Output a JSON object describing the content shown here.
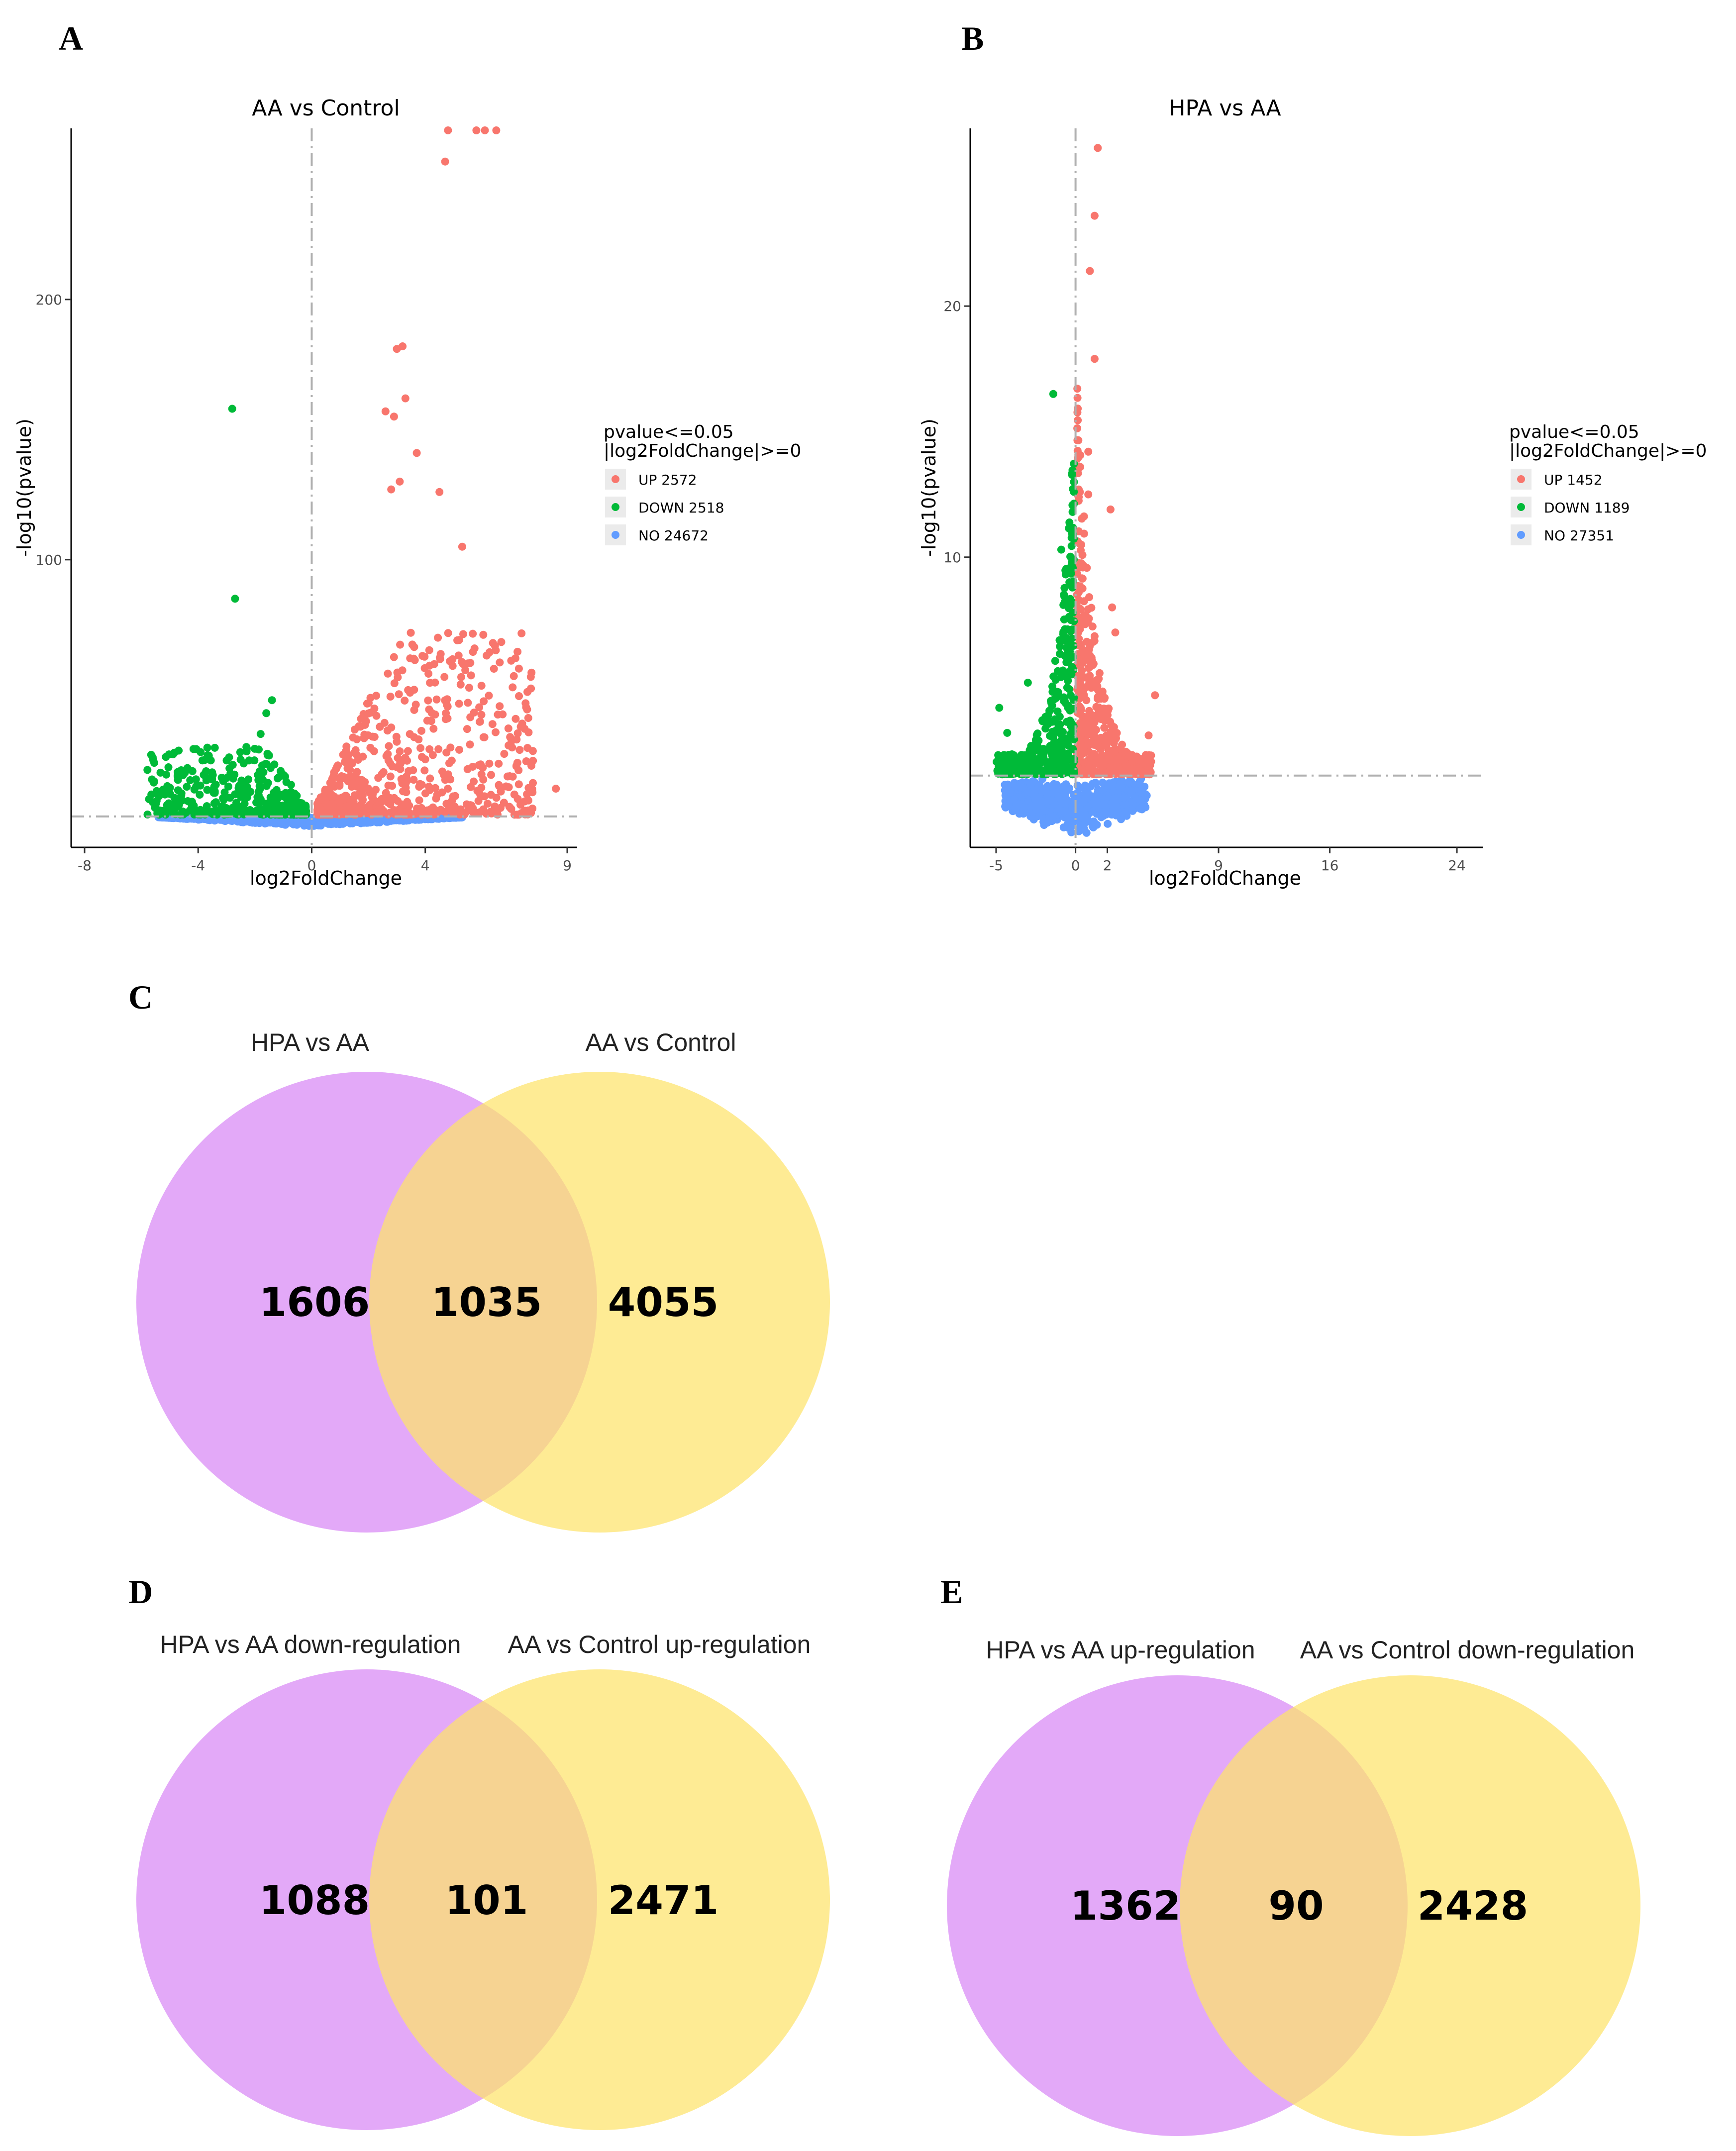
{
  "panels": {
    "A": "A",
    "B": "B",
    "C": "C",
    "D": "D",
    "E": "E"
  },
  "chart_data": [
    {
      "type": "scatter",
      "id": "A",
      "title": "AA  vs  Control",
      "xlabel": "log2FoldChange",
      "ylabel": "-log10(pvalue)",
      "xlim": [
        -8,
        9
      ],
      "ylim": [
        -10,
        265
      ],
      "x_ticks": [
        -8,
        -4,
        0,
        4,
        9
      ],
      "x_tick_labels": [
        "-8",
        "-4",
        "0",
        "4",
        "9"
      ],
      "y_ticks": [
        100,
        200
      ],
      "y_tick_labels": [
        "100",
        "200"
      ],
      "threshold_x": 0,
      "threshold_y": 1.3,
      "legend": {
        "title_line1": "pvalue<=0.05",
        "title_line2": "|log2FoldChange|>=0",
        "placement": "right",
        "entries": [
          {
            "label": "UP 2572",
            "color": "#f8766d"
          },
          {
            "label": "DOWN 2518",
            "color": "#00ba38"
          },
          {
            "label": "NO 24672",
            "color": "#619cff"
          }
        ]
      },
      "highlight_points": {
        "up": [
          [
            4.8,
            265
          ],
          [
            5.8,
            265
          ],
          [
            6.1,
            265
          ],
          [
            6.5,
            265
          ],
          [
            4.7,
            253
          ],
          [
            3.2,
            182
          ],
          [
            3.0,
            181
          ],
          [
            3.3,
            162
          ],
          [
            2.6,
            157
          ],
          [
            2.9,
            155
          ],
          [
            3.7,
            141
          ],
          [
            4.5,
            126
          ],
          [
            5.3,
            105
          ],
          [
            3.1,
            130
          ],
          [
            2.8,
            127
          ],
          [
            7.5,
            35
          ],
          [
            8.6,
            12
          ],
          [
            5.5,
            45
          ],
          [
            6.6,
            13
          ]
        ],
        "down": [
          [
            -2.8,
            158
          ],
          [
            -2.7,
            85
          ],
          [
            -1.4,
            46
          ],
          [
            -1.6,
            41
          ],
          [
            -1.8,
            33
          ],
          [
            -2.3,
            28
          ]
        ]
      },
      "cloud": {
        "up": {
          "x": [
            0.2,
            7.8
          ],
          "count": 700
        },
        "down": {
          "x": [
            -5.8,
            -0.2
          ],
          "count": 420
        },
        "no": {
          "x": [
            -5.4,
            5.3
          ],
          "count": 700
        }
      }
    },
    {
      "type": "scatter",
      "id": "B",
      "title": "HPA  vs  AA",
      "xlabel": "log2FoldChange",
      "ylabel": "-log10(pvalue)",
      "xlim": [
        -6,
        25
      ],
      "ylim": [
        -1.5,
        27
      ],
      "x_ticks": [
        -5,
        0,
        2,
        9,
        16,
        24
      ],
      "x_tick_labels": [
        "-5",
        "0",
        "2",
        "9",
        "16",
        "24"
      ],
      "y_ticks": [
        10,
        20
      ],
      "y_tick_labels": [
        "10",
        "20"
      ],
      "threshold_x": 0,
      "threshold_y": 1.3,
      "legend": {
        "title_line1": "pvalue<=0.05",
        "title_line2": "|log2FoldChange|>=0",
        "placement": "right",
        "entries": [
          {
            "label": "UP 1452",
            "color": "#f8766d"
          },
          {
            "label": "DOWN 1189",
            "color": "#00ba38"
          },
          {
            "label": "NO 27351",
            "color": "#619cff"
          }
        ]
      },
      "highlight_points": {
        "up": [
          [
            1.4,
            26.3
          ],
          [
            1.2,
            23.6
          ],
          [
            0.9,
            21.4
          ],
          [
            1.2,
            17.9
          ],
          [
            0.8,
            14.2
          ],
          [
            0.8,
            12.5
          ],
          [
            2.2,
            11.9
          ],
          [
            2.3,
            8.0
          ],
          [
            2.5,
            7.0
          ],
          [
            5.0,
            4.5
          ],
          [
            4.6,
            2.9
          ]
        ],
        "down": [
          [
            -1.4,
            16.5
          ],
          [
            -0.9,
            10.3
          ],
          [
            -4.8,
            4.0
          ],
          [
            -4.3,
            3.0
          ],
          [
            -3.0,
            5.0
          ]
        ]
      },
      "cloud": {
        "up": {
          "x": [
            0.1,
            4.8
          ],
          "count": 550
        },
        "down": {
          "x": [
            -5.0,
            -0.1
          ],
          "count": 420
        },
        "no": {
          "x": [
            -4.5,
            4.5
          ],
          "count": 700
        }
      }
    },
    {
      "type": "venn",
      "id": "C",
      "sets": [
        "HPA  vs  AA",
        "AA  vs  Control"
      ],
      "values": {
        "left_only": 1606,
        "intersection": 1035,
        "right_only": 4055
      },
      "colors": {
        "left": "#d98cf5",
        "right": "#fde36b"
      }
    },
    {
      "type": "venn",
      "id": "D",
      "sets": [
        "HPA  vs  AA  down-regulation",
        "AA  vs  Control  up-regulation"
      ],
      "values": {
        "left_only": 1088,
        "intersection": 101,
        "right_only": 2471
      },
      "colors": {
        "left": "#d98cf5",
        "right": "#fde36b"
      }
    },
    {
      "type": "venn",
      "id": "E",
      "sets": [
        "HPA  vs  AA  up-regulation",
        "AA  vs  Control  down-regulation"
      ],
      "values": {
        "left_only": 1362,
        "intersection": 90,
        "right_only": 2428
      },
      "colors": {
        "left": "#d98cf5",
        "right": "#fde36b"
      }
    }
  ]
}
